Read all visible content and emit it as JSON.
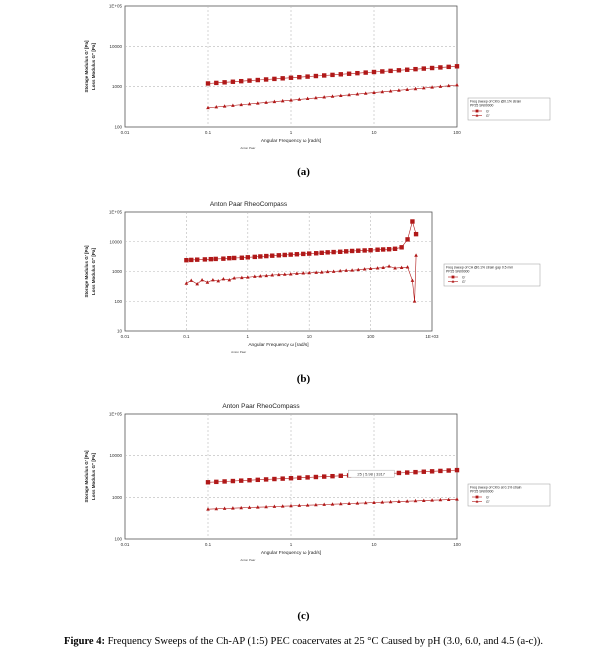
{
  "figure": {
    "caption_bold": "Figure 4:",
    "caption_text": " Frequency Sweeps of the Ch-AP (1:5) PEC coacervates at 25 °C Caused by pH (3.0, 6.0, and 4.5 (a-c))."
  },
  "colors": {
    "series": "#b01818",
    "grid": "#b8b8b8",
    "axis": "#555555"
  },
  "chart_data": [
    {
      "type": "scatter",
      "panel_label": "(a)",
      "title": "",
      "xlabel": "Angular Frequency ω [rad/s]",
      "xlabel_sub": "Anton Paar",
      "ylabel": "Storage Modulus G' [Pa]",
      "ylabel2": "Loss Modulus G'' [Pa]",
      "x_scale": "log",
      "y_scale": "log",
      "xlim": [
        0.01,
        100
      ],
      "ylim": [
        100,
        100000
      ],
      "x_ticks": [
        0.01,
        0.1,
        1,
        10,
        100
      ],
      "x_tick_labels": [
        "0.01",
        "0.1",
        "1",
        "10",
        "100"
      ],
      "y_ticks": [
        100,
        1000,
        10000,
        100000
      ],
      "y_tick_labels": [
        "100",
        "1000",
        "10000",
        "1E+05"
      ],
      "grid": true,
      "legend": {
        "title_line1": "Freq sweep of CKG @0.1% strain",
        "title_line2": "PP25 SN00000",
        "entries": [
          "G'",
          "G''"
        ],
        "placement": "right"
      },
      "annotation": "",
      "series": [
        {
          "name": "G'",
          "marker": "square",
          "x_range": [
            0.1,
            100
          ],
          "y_start": 1200,
          "y_end": 3200,
          "n": 31
        },
        {
          "name": "G''",
          "marker": "triangle",
          "x_range": [
            0.1,
            100
          ],
          "y_start": 300,
          "y_end": 1100,
          "n": 31
        }
      ]
    },
    {
      "type": "scatter",
      "panel_label": "(b)",
      "title": "Anton Paar RheoCompass",
      "xlabel": "Angular Frequency ω [rad/s]",
      "xlabel_sub": "Anton Paar",
      "ylabel": "Storage Modulus G' [Pa]",
      "ylabel2": "Loss Modulus G'' [Pa]",
      "x_scale": "log",
      "y_scale": "log",
      "xlim": [
        0.01,
        1000
      ],
      "ylim": [
        10,
        100000
      ],
      "x_ticks": [
        0.01,
        0.1,
        1,
        10,
        100,
        1000
      ],
      "x_tick_labels": [
        "0.01",
        "0.1",
        "1",
        "10",
        "100",
        "1E+03"
      ],
      "y_ticks": [
        10,
        100,
        1000,
        10000,
        100000
      ],
      "y_tick_labels": [
        "10",
        "100",
        "1000",
        "10000",
        "1E+05"
      ],
      "grid": true,
      "legend": {
        "title_line1": "Freq sweep of CA @0.1% strain gap 0.5 mm",
        "title_line2": "PP25 SN00000",
        "entries": [
          "G'",
          "G''"
        ],
        "placement": "right"
      },
      "annotation": "",
      "series": [
        {
          "name": "G'",
          "marker": "square",
          "points": [
            [
              0.1,
              2400
            ],
            [
              0.12,
              2450
            ],
            [
              0.15,
              2500
            ],
            [
              0.2,
              2550
            ],
            [
              0.25,
              2600
            ],
            [
              0.3,
              2650
            ],
            [
              0.4,
              2700
            ],
            [
              0.5,
              2800
            ],
            [
              0.6,
              2850
            ],
            [
              0.8,
              2900
            ],
            [
              1,
              3000
            ],
            [
              1.3,
              3100
            ],
            [
              1.6,
              3200
            ],
            [
              2,
              3300
            ],
            [
              2.5,
              3400
            ],
            [
              3.2,
              3500
            ],
            [
              4,
              3600
            ],
            [
              5,
              3700
            ],
            [
              6.3,
              3800
            ],
            [
              8,
              3900
            ],
            [
              10,
              4000
            ],
            [
              13,
              4100
            ],
            [
              16,
              4250
            ],
            [
              20,
              4400
            ],
            [
              25,
              4500
            ],
            [
              32,
              4600
            ],
            [
              40,
              4750
            ],
            [
              50,
              4900
            ],
            [
              63,
              5000
            ],
            [
              80,
              5100
            ],
            [
              100,
              5200
            ],
            [
              130,
              5400
            ],
            [
              160,
              5500
            ],
            [
              200,
              5600
            ],
            [
              250,
              5800
            ],
            [
              320,
              6500
            ],
            [
              400,
              12000
            ],
            [
              480,
              48000
            ],
            [
              550,
              18000
            ]
          ]
        },
        {
          "name": "G''",
          "marker": "triangle",
          "points": [
            [
              0.1,
              400
            ],
            [
              0.12,
              500
            ],
            [
              0.15,
              380
            ],
            [
              0.18,
              520
            ],
            [
              0.22,
              430
            ],
            [
              0.27,
              520
            ],
            [
              0.33,
              480
            ],
            [
              0.4,
              560
            ],
            [
              0.5,
              520
            ],
            [
              0.6,
              600
            ],
            [
              0.8,
              620
            ],
            [
              1,
              640
            ],
            [
              1.3,
              680
            ],
            [
              1.6,
              700
            ],
            [
              2,
              720
            ],
            [
              2.5,
              760
            ],
            [
              3.2,
              780
            ],
            [
              4,
              800
            ],
            [
              5,
              820
            ],
            [
              6.3,
              860
            ],
            [
              8,
              880
            ],
            [
              10,
              900
            ],
            [
              13,
              930
            ],
            [
              16,
              950
            ],
            [
              20,
              980
            ],
            [
              25,
              1000
            ],
            [
              32,
              1050
            ],
            [
              40,
              1080
            ],
            [
              50,
              1100
            ],
            [
              63,
              1150
            ],
            [
              80,
              1200
            ],
            [
              100,
              1250
            ],
            [
              130,
              1300
            ],
            [
              160,
              1350
            ],
            [
              200,
              1500
            ],
            [
              250,
              1300
            ],
            [
              320,
              1350
            ],
            [
              400,
              1400
            ],
            [
              480,
              500
            ],
            [
              520,
              100
            ],
            [
              550,
              3500
            ]
          ]
        }
      ]
    },
    {
      "type": "scatter",
      "panel_label": "(c)",
      "title": "Anton Paar RheoCompass",
      "xlabel": "Angular Frequency ω [rad/s]",
      "xlabel_sub": "Anton Paar",
      "ylabel": "Storage Modulus G' [Pa]",
      "ylabel2": "Loss Modulus G'' [Pa]",
      "x_scale": "log",
      "y_scale": "log",
      "xlim": [
        0.01,
        100
      ],
      "ylim": [
        100,
        100000
      ],
      "x_ticks": [
        0.01,
        0.1,
        1,
        10,
        100
      ],
      "x_tick_labels": [
        "0.01",
        "0.1",
        "1",
        "10",
        "100"
      ],
      "y_ticks": [
        100,
        1000,
        10000,
        100000
      ],
      "y_tick_labels": [
        "100",
        "1000",
        "10000",
        "1E+05"
      ],
      "grid": true,
      "legend": {
        "title_line1": "Freq sweep of CKG at 0.1% strain",
        "title_line2": "PP25 SN00000",
        "entries": [
          "G'",
          "G''"
        ],
        "placement": "right"
      },
      "annotation": "25 | 5.98 | 3317",
      "series": [
        {
          "name": "G'",
          "marker": "square",
          "x_range": [
            0.1,
            100
          ],
          "y_start": 2300,
          "y_end": 4500,
          "n": 31
        },
        {
          "name": "G''",
          "marker": "triangle",
          "x_range": [
            0.1,
            100
          ],
          "y_start": 520,
          "y_end": 900,
          "n": 31
        }
      ]
    }
  ]
}
